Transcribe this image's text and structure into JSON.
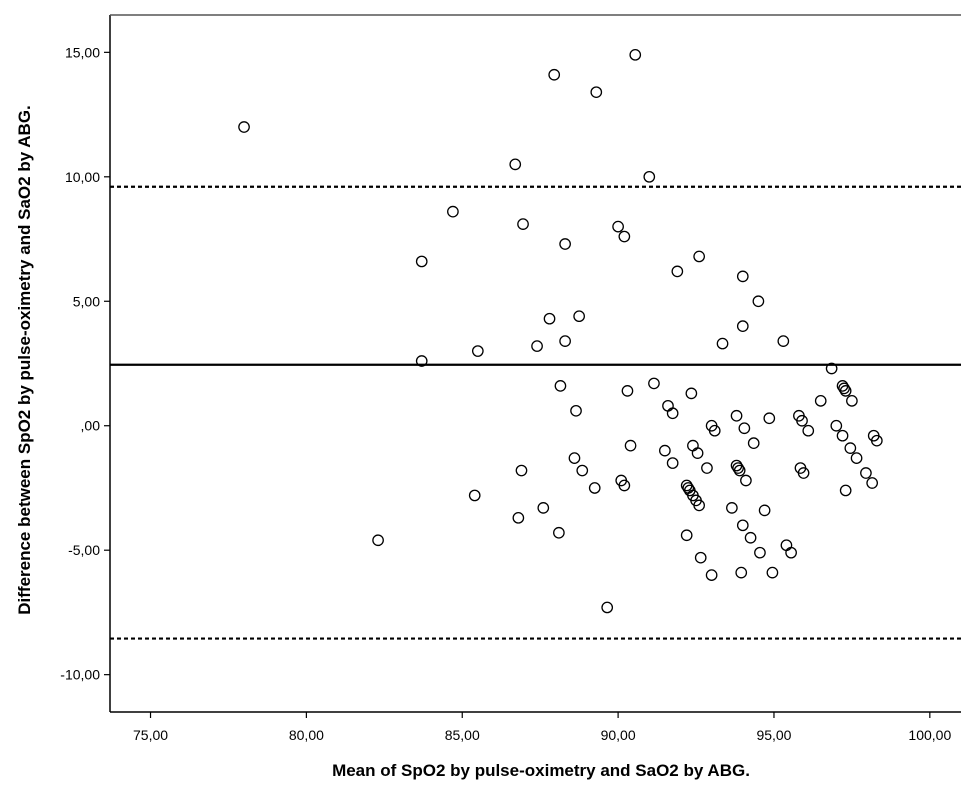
{
  "chart_data": {
    "type": "scatter",
    "title": "",
    "xlabel": "Mean of SpO2 by pulse-oximetry and SaO2 by ABG.",
    "ylabel": "Difference between SpO2 by pulse-oximetry and SaO2 by ABG.",
    "xlim": [
      73.7,
      101.0
    ],
    "ylim": [
      -11.5,
      16.5
    ],
    "x_ticks": [
      75,
      80,
      85,
      90,
      95,
      100
    ],
    "x_tick_labels": [
      "75,00",
      "80,00",
      "85,00",
      "90,00",
      "95,00",
      "100,00"
    ],
    "y_ticks": [
      -10,
      -5,
      0,
      5,
      10,
      15
    ],
    "y_tick_labels": [
      "-10,00",
      "-5,00",
      ",00",
      "5,00",
      "10,00",
      "15,00"
    ],
    "grid": false,
    "reference_lines": [
      {
        "kind": "mean",
        "y": 2.45,
        "style": "solid"
      },
      {
        "kind": "upper-limit",
        "y": 9.6,
        "style": "dotted"
      },
      {
        "kind": "lower-limit",
        "y": -8.55,
        "style": "dotted"
      }
    ],
    "points": [
      [
        78.0,
        12.0
      ],
      [
        82.3,
        -4.6
      ],
      [
        83.7,
        6.6
      ],
      [
        83.7,
        2.6
      ],
      [
        84.7,
        8.6
      ],
      [
        85.4,
        -2.8
      ],
      [
        85.5,
        3.0
      ],
      [
        86.7,
        10.5
      ],
      [
        86.8,
        -3.7
      ],
      [
        86.9,
        -1.8
      ],
      [
        86.95,
        8.1
      ],
      [
        87.4,
        3.2
      ],
      [
        87.6,
        -3.3
      ],
      [
        87.8,
        4.3
      ],
      [
        87.95,
        14.1
      ],
      [
        88.1,
        -4.3
      ],
      [
        88.15,
        1.6
      ],
      [
        88.3,
        7.3
      ],
      [
        88.3,
        3.4
      ],
      [
        88.6,
        -1.3
      ],
      [
        88.65,
        0.6
      ],
      [
        88.75,
        4.4
      ],
      [
        88.85,
        -1.8
      ],
      [
        89.25,
        -2.5
      ],
      [
        89.3,
        13.4
      ],
      [
        89.65,
        -7.3
      ],
      [
        90.0,
        8.0
      ],
      [
        90.1,
        -2.2
      ],
      [
        90.2,
        -2.4
      ],
      [
        90.2,
        7.6
      ],
      [
        90.3,
        1.4
      ],
      [
        90.4,
        -0.8
      ],
      [
        90.55,
        14.9
      ],
      [
        91.0,
        10.0
      ],
      [
        91.15,
        1.7
      ],
      [
        91.5,
        -1.0
      ],
      [
        91.6,
        0.8
      ],
      [
        91.75,
        -1.5
      ],
      [
        91.75,
        0.5
      ],
      [
        91.9,
        6.2
      ],
      [
        92.2,
        -2.4
      ],
      [
        92.2,
        -4.4
      ],
      [
        92.25,
        -2.5
      ],
      [
        92.3,
        -2.6
      ],
      [
        92.35,
        1.3
      ],
      [
        92.4,
        -2.8
      ],
      [
        92.4,
        -0.8
      ],
      [
        92.5,
        -3.0
      ],
      [
        92.55,
        -1.1
      ],
      [
        92.6,
        -3.2
      ],
      [
        92.6,
        6.8
      ],
      [
        92.65,
        -5.3
      ],
      [
        92.85,
        -1.7
      ],
      [
        93.0,
        0.0
      ],
      [
        93.0,
        -6.0
      ],
      [
        93.1,
        -0.2
      ],
      [
        93.35,
        3.3
      ],
      [
        93.65,
        -3.3
      ],
      [
        93.8,
        0.4
      ],
      [
        93.8,
        -1.6
      ],
      [
        93.85,
        -1.7
      ],
      [
        93.9,
        -1.8
      ],
      [
        93.95,
        -5.9
      ],
      [
        94.0,
        -4.0
      ],
      [
        94.0,
        4.0
      ],
      [
        94.0,
        6.0
      ],
      [
        94.05,
        -0.1
      ],
      [
        94.1,
        -2.2
      ],
      [
        94.25,
        -4.5
      ],
      [
        94.35,
        -0.7
      ],
      [
        94.5,
        5.0
      ],
      [
        94.55,
        -5.1
      ],
      [
        94.7,
        -3.4
      ],
      [
        94.85,
        0.3
      ],
      [
        94.95,
        -5.9
      ],
      [
        95.3,
        3.4
      ],
      [
        95.4,
        -4.8
      ],
      [
        95.55,
        -5.1
      ],
      [
        95.8,
        0.4
      ],
      [
        95.85,
        -1.7
      ],
      [
        95.9,
        0.2
      ],
      [
        95.95,
        -1.9
      ],
      [
        96.1,
        -0.2
      ],
      [
        96.5,
        1.0
      ],
      [
        96.85,
        2.3
      ],
      [
        97.0,
        0.0
      ],
      [
        97.2,
        1.6
      ],
      [
        97.2,
        -0.4
      ],
      [
        97.25,
        1.5
      ],
      [
        97.3,
        1.4
      ],
      [
        97.3,
        -2.6
      ],
      [
        97.45,
        -0.9
      ],
      [
        97.5,
        1.0
      ],
      [
        97.65,
        -1.3
      ],
      [
        97.95,
        -1.9
      ],
      [
        98.15,
        -2.3
      ],
      [
        98.2,
        -0.4
      ],
      [
        98.3,
        -0.6
      ]
    ]
  }
}
